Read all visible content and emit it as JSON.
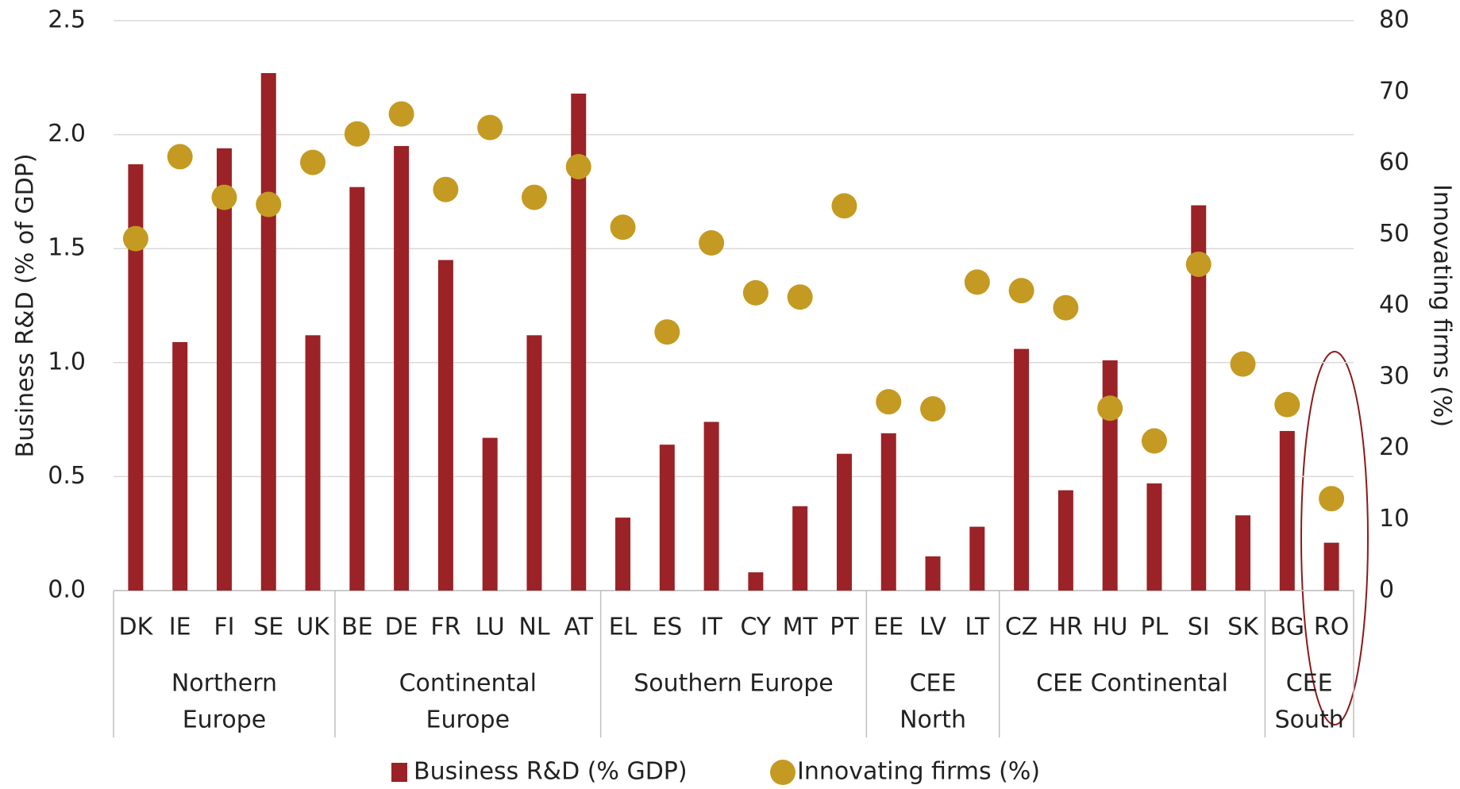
{
  "chart_data": {
    "type": "bar",
    "categories": [
      "DK",
      "IE",
      "FI",
      "SE",
      "UK",
      "BE",
      "DE",
      "FR",
      "LU",
      "NL",
      "AT",
      "EL",
      "ES",
      "IT",
      "CY",
      "MT",
      "PT",
      "EE",
      "LV",
      "LT",
      "CZ",
      "HR",
      "HU",
      "PL",
      "SI",
      "SK",
      "BG",
      "RO"
    ],
    "groups": [
      {
        "label": [
          "Northern",
          "Europe"
        ],
        "count": 5
      },
      {
        "label": [
          "Continental",
          "Europe"
        ],
        "count": 6
      },
      {
        "label": [
          "Southern Europe"
        ],
        "count": 6
      },
      {
        "label": [
          "CEE",
          "North"
        ],
        "count": 3
      },
      {
        "label": [
          "CEE Continental"
        ],
        "count": 6
      },
      {
        "label": [
          "CEE",
          "South"
        ],
        "count": 2
      }
    ],
    "series": [
      {
        "name": "Business R&D (% GDP)",
        "color": "#9b2226",
        "type": "bar",
        "values": [
          1.87,
          1.09,
          1.94,
          2.27,
          1.12,
          1.77,
          1.95,
          1.45,
          0.67,
          1.12,
          2.18,
          0.32,
          0.64,
          0.74,
          0.08,
          0.37,
          0.6,
          0.69,
          0.15,
          0.28,
          1.06,
          0.44,
          1.01,
          0.47,
          1.69,
          0.33,
          0.7,
          0.21
        ]
      },
      {
        "name": "Innovating firms (%)",
        "color": "#c49a22",
        "type": "scatter",
        "axis": "y2",
        "values": [
          49.4,
          60.9,
          55.2,
          54.2,
          60.1,
          64.1,
          66.9,
          56.3,
          65.0,
          55.2,
          59.5,
          51.0,
          36.3,
          48.8,
          41.8,
          41.2,
          54.0,
          26.5,
          25.5,
          43.3,
          42.1,
          39.7,
          25.6,
          21.0,
          45.8,
          31.8,
          26.1,
          12.9
        ]
      }
    ],
    "y_label": "Business R&D (% of GDP)",
    "y2_label": "Innovating firms (%)",
    "ylim": [
      0,
      2.5
    ],
    "yticks": [
      {
        "value": 0,
        "label": "0.0"
      },
      0.5,
      {
        "value": 1,
        "label": "1.0"
      },
      1.5,
      {
        "value": 2,
        "label": "2.0"
      },
      2.5
    ],
    "y2lim": [
      0,
      80
    ],
    "y2ticks": [
      0,
      10,
      20,
      30,
      40,
      50,
      60,
      70,
      80
    ],
    "grid": true
  }
}
